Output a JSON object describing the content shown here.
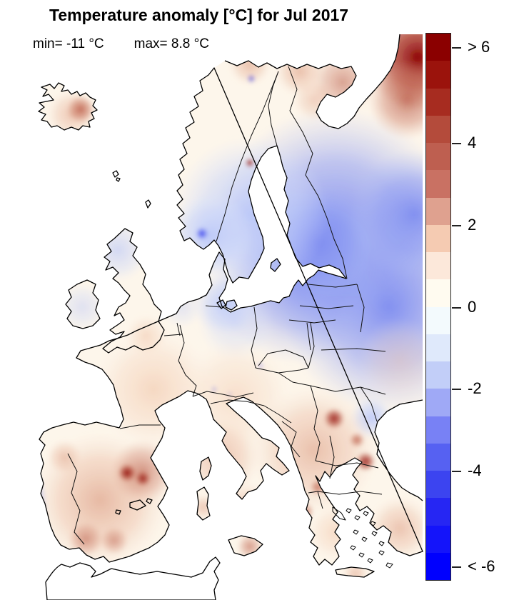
{
  "title": "Temperature anomaly [°C] for Jul 2017",
  "stats": {
    "min_label": "min= -11 °C",
    "max_label": "max= 8.8 °C"
  },
  "colors": {
    "background": "#ffffff",
    "sea": "#ffffff",
    "land_neutral": "#FDF6EB",
    "coastline": "#000000",
    "country_border": "#111111",
    "text": "#000000"
  },
  "chart_data": {
    "type": "heatmap",
    "subtype": "geographic raster anomaly map",
    "region": "Europe",
    "variable": "Temperature anomaly",
    "units": "°C",
    "period": "Jul 2017",
    "title": "Temperature anomaly [°C] for Jul 2017",
    "min_value": -11,
    "max_value": 8.8,
    "grid": false,
    "colorbar": {
      "orientation": "vertical",
      "position": "right",
      "domain_top": 6.67,
      "domain_bottom": -6.67,
      "segment_step": 0.667,
      "open_ended_top_label": "> 6",
      "open_ended_bottom_label": "< -6",
      "ticks": [
        {
          "label": "> 6",
          "value": 6.33
        },
        {
          "label": "4",
          "value": 4
        },
        {
          "label": "2",
          "value": 2
        },
        {
          "label": "0",
          "value": 0
        },
        {
          "label": "-2",
          "value": -2
        },
        {
          "label": "-4",
          "value": -4
        },
        {
          "label": "< -6",
          "value": -6.33
        }
      ],
      "segments": [
        "#8B0000",
        "#9B130C",
        "#A72C20",
        "#B44B3B",
        "#BE5F50",
        "#C97163",
        "#DFA18F",
        "#F5CBB2",
        "#FCE8DA",
        "#FFFBF0",
        "#F3FAFD",
        "#DFE9FB",
        "#C2CEF8",
        "#9FA9F6",
        "#7881F5",
        "#5661F2",
        "#3C44F0",
        "#2626F3",
        "#1414FA",
        "#0000FE"
      ]
    },
    "regional_anomalies": [
      {
        "region": "Far northeastern Russia / Arkhangelsk corner",
        "anomaly_c": "+4 to >6"
      },
      {
        "region": "Kola Peninsula and northern Norway (Finnmark)",
        "anomaly_c": "+1 to +3"
      },
      {
        "region": "Iceland (spot in north-central)",
        "anomaly_c": "+1 to +3"
      },
      {
        "region": "Sweden and Finland",
        "anomaly_c": "-1 to -2 (local warm dot in central Sweden)"
      },
      {
        "region": "Southern Norway (Oslo area dot)",
        "anomaly_c": "-3 to -4"
      },
      {
        "region": "Baltic states, Belarus, western Russia",
        "anomaly_c": "-1.5 to -3"
      },
      {
        "region": "Denmark and northern Germany/Poland",
        "anomaly_c": "-0.5 to -1.5"
      },
      {
        "region": "British Isles",
        "anomaly_c": "-0.5 (Scotland) to +0.5 (England)"
      },
      {
        "region": "France and Central Europe",
        "anomaly_c": "0 to +1"
      },
      {
        "region": "Iberian Peninsula",
        "anomaly_c": "+1 to +3, >4 band along Pyrenees / NE Spain"
      },
      {
        "region": "Portuguese Atlantic coast",
        "anomaly_c": "-1 to -2"
      },
      {
        "region": "Italy and islands",
        "anomaly_c": "+1 to +2"
      },
      {
        "region": "Balkans: Romania, Bulgaria, Serbia, Albania hotspots",
        "anomaly_c": "+2 to +5"
      },
      {
        "region": "Moldova / NE Romania",
        "anomaly_c": "-0.5 to -1"
      },
      {
        "region": "Greece and Aegean",
        "anomaly_c": "+0.5 to +1.5"
      },
      {
        "region": "NW Turkey",
        "anomaly_c": "+1 to +2"
      }
    ]
  }
}
